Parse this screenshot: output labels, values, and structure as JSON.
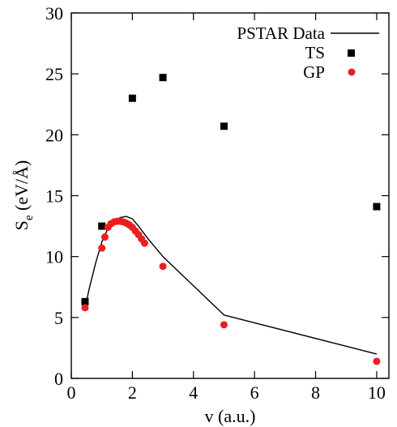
{
  "chart_data": {
    "type": "scatter",
    "xlabel": "v (a.u.)",
    "ylabel_main": "S",
    "ylabel_sub": "e",
    "ylabel_units": " (eV/Å)",
    "xlim": [
      0,
      10.4
    ],
    "ylim": [
      0,
      30
    ],
    "xticks": [
      0,
      2,
      4,
      6,
      8,
      10
    ],
    "yticks": [
      0,
      5,
      10,
      15,
      20,
      25,
      30
    ],
    "legend_position": "top-right",
    "grid": false,
    "series": [
      {
        "name": "PSTAR Data",
        "kind": "line",
        "color": "#000000",
        "x": [
          0.45,
          0.6,
          0.8,
          1.0,
          1.2,
          1.4,
          1.6,
          1.8,
          2.0,
          2.2,
          2.5,
          3.0,
          4.0,
          5.0,
          10.0
        ],
        "y": [
          5.8,
          7.5,
          9.5,
          11.2,
          12.3,
          12.9,
          13.2,
          13.3,
          13.1,
          12.5,
          11.5,
          10.0,
          7.6,
          5.2,
          2.0
        ]
      },
      {
        "name": "TS",
        "kind": "marker-square",
        "color": "#000000",
        "x": [
          0.45,
          1.0,
          2.0,
          3.0,
          5.0,
          10.0
        ],
        "y": [
          6.3,
          12.5,
          23.0,
          24.7,
          20.7,
          14.1
        ]
      },
      {
        "name": "GP",
        "kind": "marker-circle",
        "color": "#e8201f",
        "x": [
          0.45,
          1.0,
          1.1,
          1.2,
          1.3,
          1.4,
          1.5,
          1.6,
          1.7,
          1.8,
          1.9,
          2.0,
          2.1,
          2.2,
          2.3,
          2.4,
          3.0,
          5.0,
          10.0
        ],
        "y": [
          5.8,
          10.7,
          11.6,
          12.4,
          12.7,
          12.85,
          12.9,
          12.9,
          12.85,
          12.75,
          12.6,
          12.4,
          12.1,
          11.8,
          11.45,
          11.1,
          9.2,
          4.4,
          1.4
        ]
      }
    ]
  }
}
